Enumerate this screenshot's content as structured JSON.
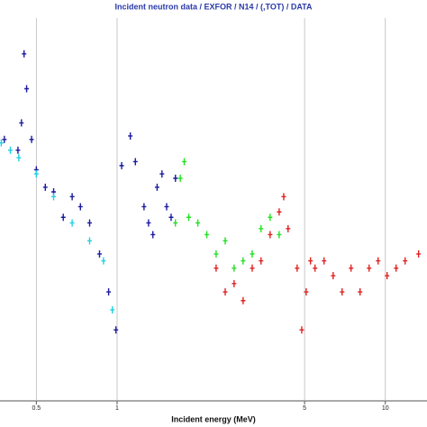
{
  "chart_data": {
    "type": "scatter",
    "title": "Incident neutron data / EXFOR / N14 / (,TOT) / DATA",
    "x_label": "Incident energy (MeV)",
    "xscale": "log",
    "yscale": "log",
    "grid": true,
    "xlim": [
      0.366,
      14.3
    ],
    "ylim": [
      1,
      10
    ],
    "xticks": [
      0.5,
      1,
      5,
      10
    ],
    "series": [
      {
        "color": "#1a1aa0",
        "x": [
          0.38,
          0.427,
          0.44,
          0.45,
          0.46,
          0.48,
          0.5,
          0.54,
          0.58,
          0.63,
          0.68,
          0.73,
          0.79,
          0.86,
          0.93,
          0.99,
          1.04,
          1.12,
          1.17,
          1.26,
          1.31,
          1.36,
          1.41,
          1.47,
          1.53,
          1.59,
          1.65
        ],
        "values": [
          4.9,
          4.6,
          5.4,
          8.1,
          6.6,
          4.9,
          4.1,
          3.7,
          3.6,
          3.1,
          3.5,
          3.3,
          3.0,
          2.5,
          2.0,
          1.6,
          4.2,
          5.0,
          4.3,
          3.3,
          3.0,
          2.8,
          3.7,
          4.0,
          3.3,
          3.1,
          3.9
        ]
      },
      {
        "color": "#22d0e0",
        "x": [
          0.37,
          0.4,
          0.43,
          0.5,
          0.58,
          0.68,
          0.79,
          0.89,
          0.96
        ],
        "values": [
          4.8,
          4.6,
          4.4,
          4.0,
          3.5,
          3.0,
          2.7,
          2.4,
          1.8
        ]
      },
      {
        "color": "#20e020",
        "x": [
          1.65,
          1.72,
          1.78,
          1.85,
          2.0,
          2.16,
          2.34,
          2.53,
          2.73,
          2.95,
          3.19,
          3.44,
          3.72,
          4.02
        ],
        "values": [
          3.0,
          3.9,
          4.3,
          3.1,
          3.0,
          2.8,
          2.5,
          2.7,
          2.3,
          2.4,
          2.5,
          2.9,
          3.1,
          2.8
        ]
      },
      {
        "color": "#e02020",
        "x": [
          2.34,
          2.53,
          2.73,
          2.95,
          3.19,
          3.44,
          3.72,
          4.02,
          4.18,
          4.34,
          4.69,
          4.88,
          5.07,
          5.26,
          5.47,
          5.91,
          6.39,
          6.9,
          7.45,
          8.05,
          8.7,
          9.4,
          10.15,
          10.97,
          11.85,
          13.3
        ],
        "values": [
          2.3,
          2.0,
          2.1,
          1.9,
          2.3,
          2.4,
          2.8,
          3.2,
          3.5,
          2.9,
          2.3,
          1.6,
          2.0,
          2.4,
          2.3,
          2.4,
          2.2,
          2.0,
          2.3,
          2.0,
          2.3,
          2.4,
          2.2,
          2.3,
          2.4,
          2.5
        ]
      }
    ]
  }
}
